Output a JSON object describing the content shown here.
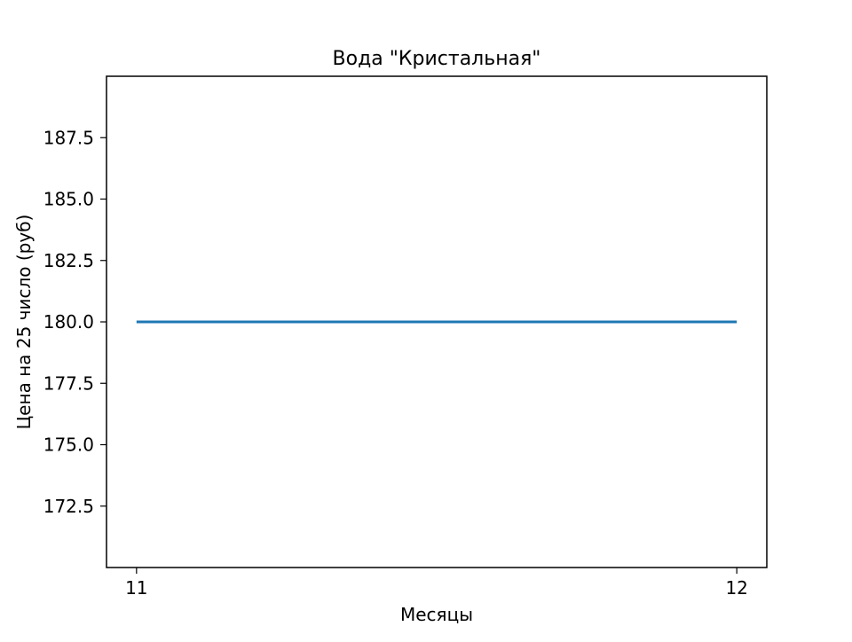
{
  "chart_data": {
    "type": "line",
    "title": "Вода \"Кристальная\"",
    "xlabel": "Месяцы",
    "ylabel": "Цена на 25 число (руб)",
    "x": [
      11,
      12
    ],
    "x_tick_labels": [
      "11",
      "12"
    ],
    "series": [
      {
        "values": [
          180.0,
          180.0
        ],
        "color": "#1f77b4"
      }
    ],
    "xlim": [
      10.95,
      12.05
    ],
    "ylim": [
      170.0,
      190.0
    ],
    "y_ticks": [
      172.5,
      175.0,
      177.5,
      180.0,
      182.5,
      185.0,
      187.5
    ],
    "y_tick_labels": [
      "172.5",
      "175.0",
      "177.5",
      "180.0",
      "182.5",
      "185.0",
      "187.5"
    ],
    "grid": false,
    "legend": "none"
  }
}
